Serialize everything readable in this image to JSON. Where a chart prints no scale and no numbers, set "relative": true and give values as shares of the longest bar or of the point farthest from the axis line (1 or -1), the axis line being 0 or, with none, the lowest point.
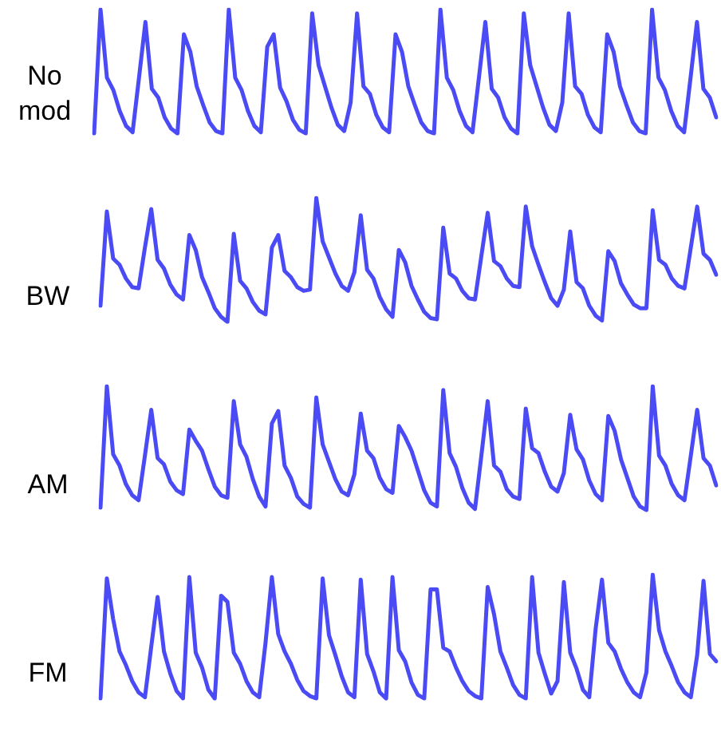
{
  "chart_data": [
    {
      "type": "line",
      "ylabel": "No mod",
      "relative": true,
      "grid": false,
      "legend": false,
      "marker": "none",
      "categories": [
        null,
        null,
        null,
        null,
        null,
        null,
        null,
        null,
        null,
        null,
        null,
        null,
        null,
        null,
        null,
        null,
        null,
        null,
        null,
        null,
        null,
        null,
        null,
        null,
        null,
        null,
        null,
        null,
        null,
        null,
        null,
        null,
        null,
        null,
        null,
        null,
        null,
        null,
        null,
        null,
        null,
        null,
        null,
        null,
        null,
        null,
        null,
        null,
        null,
        null,
        null,
        null,
        null,
        null,
        null,
        null,
        null,
        null,
        null,
        null,
        null,
        null,
        null,
        null,
        null,
        null,
        null,
        null,
        null,
        null,
        null,
        null,
        null,
        null,
        null,
        null,
        null,
        null,
        null,
        null,
        null,
        null,
        null,
        null,
        null,
        null,
        null,
        null,
        null,
        null,
        null,
        null,
        null,
        null,
        null,
        null,
        null,
        null
      ],
      "series": [
        {
          "color": "#4b4bf5",
          "values": [
            0,
            1,
            0.45,
            0.35,
            0.18,
            0.06,
            0.01,
            0.45,
            0.9,
            0.36,
            0.29,
            0.13,
            0.04,
            0,
            0.8,
            0.66,
            0.38,
            0.23,
            0.09,
            0.02,
            0,
            1,
            0.45,
            0.35,
            0.18,
            0.06,
            0.01,
            0.7,
            0.8,
            0.37,
            0.26,
            0.11,
            0.03,
            0,
            0.97,
            0.55,
            0.38,
            0.21,
            0.07,
            0.02,
            0.25,
            0.97,
            0.38,
            0.32,
            0.15,
            0.05,
            0.01,
            0.8,
            0.66,
            0.38,
            0.23,
            0.09,
            0.02,
            0,
            1,
            0.45,
            0.35,
            0.18,
            0.06,
            0.01,
            0.45,
            0.9,
            0.36,
            0.29,
            0.13,
            0.04,
            0,
            0.97,
            0.55,
            0.38,
            0.21,
            0.07,
            0.02,
            0.25,
            0.97,
            0.38,
            0.32,
            0.15,
            0.05,
            0.01,
            0.8,
            0.66,
            0.38,
            0.23,
            0.09,
            0.02,
            0,
            1,
            0.45,
            0.35,
            0.18,
            0.06,
            0.01,
            0.45,
            0.9,
            0.36,
            0.29,
            0.13
          ]
        }
      ]
    },
    {
      "type": "line",
      "ylabel": "BW",
      "relative": true,
      "grid": false,
      "legend": false,
      "marker": "none",
      "categories": [
        null,
        null,
        null,
        null,
        null,
        null,
        null,
        null,
        null,
        null,
        null,
        null,
        null,
        null,
        null,
        null,
        null,
        null,
        null,
        null,
        null,
        null,
        null,
        null,
        null,
        null,
        null,
        null,
        null,
        null,
        null,
        null,
        null,
        null,
        null,
        null,
        null,
        null,
        null,
        null,
        null,
        null,
        null,
        null,
        null,
        null,
        null,
        null,
        null,
        null,
        null,
        null,
        null,
        null,
        null,
        null,
        null,
        null,
        null,
        null,
        null,
        null,
        null,
        null,
        null,
        null,
        null,
        null,
        null,
        null,
        null,
        null,
        null,
        null,
        null,
        null,
        null,
        null,
        null,
        null,
        null,
        null,
        null,
        null,
        null,
        null,
        null,
        null,
        null,
        null,
        null,
        null,
        null,
        null,
        null,
        null,
        null,
        null
      ],
      "series": [
        {
          "color": "#4b4bf5",
          "values": [
            0.13,
            0.89,
            0.51,
            0.46,
            0.35,
            0.28,
            0.27,
            0.6,
            0.91,
            0.5,
            0.43,
            0.3,
            0.22,
            0.18,
            0.7,
            0.58,
            0.36,
            0.24,
            0.11,
            0.04,
            0,
            0.71,
            0.33,
            0.27,
            0.16,
            0.09,
            0.06,
            0.6,
            0.7,
            0.41,
            0.36,
            0.28,
            0.25,
            0.26,
            1,
            0.65,
            0.52,
            0.39,
            0.29,
            0.25,
            0.4,
            0.86,
            0.42,
            0.35,
            0.2,
            0.1,
            0.04,
            0.58,
            0.48,
            0.29,
            0.18,
            0.08,
            0.03,
            0.02,
            0.76,
            0.39,
            0.35,
            0.25,
            0.19,
            0.18,
            0.53,
            0.88,
            0.49,
            0.45,
            0.35,
            0.29,
            0.28,
            0.93,
            0.61,
            0.46,
            0.32,
            0.19,
            0.13,
            0.26,
            0.73,
            0.32,
            0.27,
            0.13,
            0.05,
            0.01,
            0.57,
            0.49,
            0.31,
            0.22,
            0.14,
            0.11,
            0.11,
            0.9,
            0.5,
            0.46,
            0.35,
            0.29,
            0.27,
            0.6,
            0.93,
            0.55,
            0.5,
            0.38
          ]
        }
      ]
    },
    {
      "type": "line",
      "ylabel": "AM",
      "relative": true,
      "grid": false,
      "legend": false,
      "marker": "none",
      "categories": [
        null,
        null,
        null,
        null,
        null,
        null,
        null,
        null,
        null,
        null,
        null,
        null,
        null,
        null,
        null,
        null,
        null,
        null,
        null,
        null,
        null,
        null,
        null,
        null,
        null,
        null,
        null,
        null,
        null,
        null,
        null,
        null,
        null,
        null,
        null,
        null,
        null,
        null,
        null,
        null,
        null,
        null,
        null,
        null,
        null,
        null,
        null,
        null,
        null,
        null,
        null,
        null,
        null,
        null,
        null,
        null,
        null,
        null,
        null,
        null,
        null,
        null,
        null,
        null,
        null,
        null,
        null,
        null,
        null,
        null,
        null,
        null,
        null,
        null,
        null,
        null,
        null,
        null,
        null,
        null,
        null,
        null,
        null,
        null,
        null,
        null,
        null,
        null,
        null,
        null,
        null,
        null,
        null,
        null,
        null,
        null,
        null,
        null
      ],
      "series": [
        {
          "color": "#4b4bf5",
          "values": [
            0.02,
            1,
            0.45,
            0.36,
            0.21,
            0.12,
            0.08,
            0.44,
            0.81,
            0.42,
            0.37,
            0.23,
            0.16,
            0.13,
            0.65,
            0.56,
            0.48,
            0.33,
            0.19,
            0.12,
            0.1,
            0.88,
            0.53,
            0.43,
            0.25,
            0.11,
            0.03,
            0.7,
            0.8,
            0.36,
            0.26,
            0.11,
            0.05,
            0.02,
            0.91,
            0.53,
            0.39,
            0.25,
            0.15,
            0.12,
            0.29,
            0.78,
            0.48,
            0.42,
            0.26,
            0.17,
            0.14,
            0.68,
            0.59,
            0.48,
            0.32,
            0.16,
            0.06,
            0.03,
            0.97,
            0.46,
            0.35,
            0.18,
            0.06,
            0.01,
            0.44,
            0.88,
            0.36,
            0.31,
            0.17,
            0.11,
            0.09,
            0.82,
            0.5,
            0.46,
            0.31,
            0.19,
            0.15,
            0.3,
            0.77,
            0.49,
            0.41,
            0.24,
            0.13,
            0.08,
            0.76,
            0.64,
            0.41,
            0.26,
            0.11,
            0.03,
            0,
            1,
            0.44,
            0.36,
            0.21,
            0.12,
            0.08,
            0.44,
            0.81,
            0.42,
            0.36,
            0.2
          ]
        }
      ]
    },
    {
      "type": "line",
      "ylabel": "FM",
      "relative": true,
      "grid": false,
      "legend": false,
      "marker": "none",
      "categories": [
        null,
        null,
        null,
        null,
        null,
        null,
        null,
        null,
        null,
        null,
        null,
        null,
        null,
        null,
        null,
        null,
        null,
        null,
        null,
        null,
        null,
        null,
        null,
        null,
        null,
        null,
        null,
        null,
        null,
        null,
        null,
        null,
        null,
        null,
        null,
        null,
        null,
        null,
        null,
        null,
        null,
        null,
        null,
        null,
        null,
        null,
        null,
        null,
        null,
        null,
        null,
        null,
        null,
        null,
        null,
        null,
        null,
        null,
        null,
        null,
        null,
        null,
        null,
        null,
        null,
        null,
        null,
        null,
        null,
        null,
        null,
        null,
        null,
        null,
        null,
        null,
        null,
        null,
        null,
        null,
        null,
        null,
        null,
        null,
        null,
        null,
        null,
        null,
        null,
        null,
        null,
        null,
        null,
        null,
        null,
        null,
        null,
        null
      ],
      "series": [
        {
          "color": "#4b4bf5",
          "values": [
            0,
            0.97,
            0.64,
            0.38,
            0.27,
            0.14,
            0.05,
            0.01,
            0.42,
            0.82,
            0.38,
            0.2,
            0.06,
            0,
            0.98,
            0.37,
            0.25,
            0.07,
            0,
            0.83,
            0.78,
            0.37,
            0.28,
            0.14,
            0.05,
            0.01,
            0.45,
            0.98,
            0.52,
            0.38,
            0.28,
            0.15,
            0.06,
            0.02,
            0,
            0.97,
            0.51,
            0.35,
            0.18,
            0.05,
            0.01,
            0.96,
            0.36,
            0.22,
            0.05,
            0,
            0.98,
            0.39,
            0.3,
            0.13,
            0.03,
            0,
            0.88,
            0.88,
            0.41,
            0.38,
            0.25,
            0.14,
            0.06,
            0.02,
            0,
            0.9,
            0.68,
            0.38,
            0.25,
            0.11,
            0.03,
            0,
            0.98,
            0.37,
            0.2,
            0.04,
            0.14,
            0.94,
            0.37,
            0.24,
            0.07,
            0.01,
            0.56,
            0.96,
            0.45,
            0.38,
            0.24,
            0.13,
            0.05,
            0.01,
            0.21,
            1,
            0.55,
            0.38,
            0.26,
            0.13,
            0.05,
            0.01,
            0.35,
            0.95,
            0.36,
            0.3
          ]
        }
      ]
    }
  ]
}
